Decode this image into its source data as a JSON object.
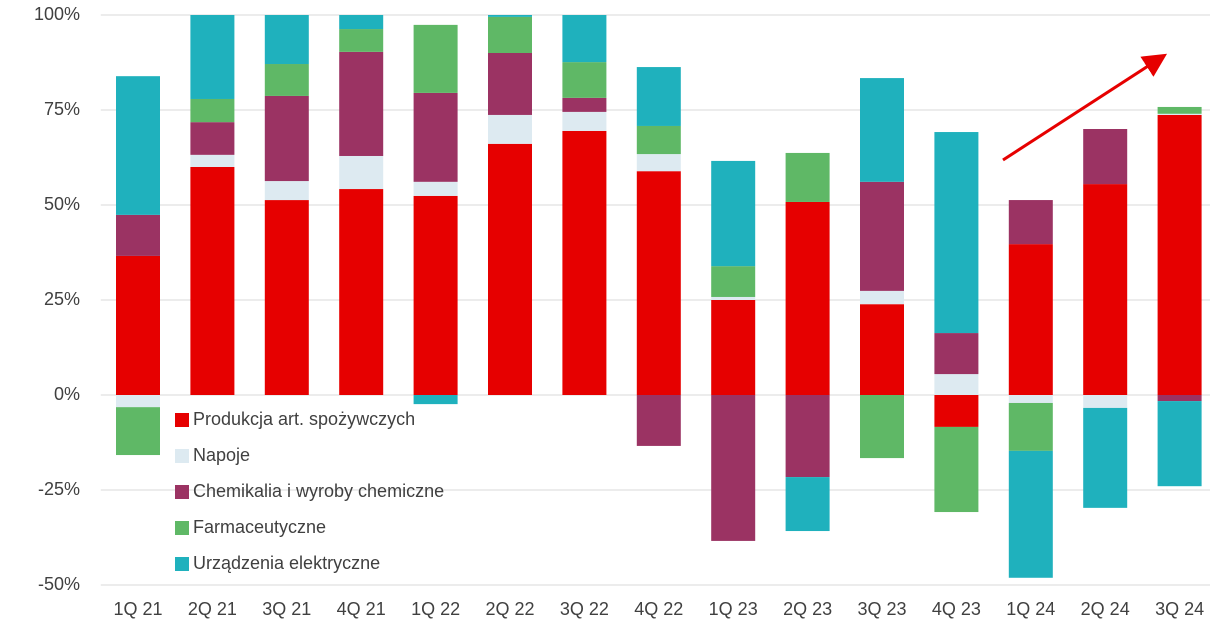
{
  "chart_data": {
    "type": "bar",
    "stacked": true,
    "categories": [
      "1Q 21",
      "2Q 21",
      "3Q 21",
      "4Q 21",
      "1Q 22",
      "2Q 22",
      "3Q 22",
      "4Q 22",
      "1Q 23",
      "2Q 23",
      "3Q 23",
      "4Q 23",
      "1Q 24",
      "2Q 24",
      "3Q 24"
    ],
    "series": [
      {
        "name": "Produkcja art. spożywczych",
        "color": "#e60000",
        "values": [
          36.6,
          60.0,
          51.3,
          54.2,
          52.4,
          66.1,
          69.5,
          58.9,
          25.0,
          50.8,
          23.9,
          -8.4,
          39.7,
          55.5,
          73.7
        ]
      },
      {
        "name": "Napoje",
        "color": "#ddeaf1",
        "values": [
          -3.2,
          3.2,
          5.0,
          8.7,
          3.7,
          7.6,
          5.0,
          4.5,
          0.8,
          0,
          3.5,
          5.5,
          -2.1,
          -3.4,
          0.3
        ]
      },
      {
        "name": "Chemikalia i wyroby chemiczne",
        "color": "#9b3363",
        "values": [
          10.8,
          8.6,
          22.4,
          27.4,
          23.4,
          16.3,
          3.7,
          -13.4,
          -38.4,
          -21.6,
          28.7,
          10.8,
          11.6,
          14.5,
          -1.6
        ]
      },
      {
        "name": "Farmaceutyczne",
        "color": "#5fb866",
        "values": [
          -12.6,
          6.1,
          8.4,
          6.0,
          17.9,
          9.5,
          9.4,
          7.4,
          8.1,
          12.9,
          -16.6,
          -22.4,
          -12.6,
          0,
          1.8
        ]
      },
      {
        "name": "Urządzenia elektryczne",
        "color": "#1fb1bd",
        "values": [
          36.5,
          22.1,
          12.9,
          3.7,
          -2.4,
          0.5,
          12.4,
          15.5,
          27.7,
          -14.2,
          27.3,
          52.9,
          -33.4,
          -26.3,
          -22.4
        ]
      }
    ],
    "ylim": [
      -50,
      100
    ],
    "yticks": [
      {
        "value": -50,
        "label": "-50%"
      },
      {
        "value": -25,
        "label": "-25%"
      },
      {
        "value": 0,
        "label": "0%"
      },
      {
        "value": 25,
        "label": "25%"
      },
      {
        "value": 50,
        "label": "50%"
      },
      {
        "value": 75,
        "label": "75%"
      },
      {
        "value": 100,
        "label": "100%"
      }
    ],
    "grid": true,
    "legend": "lower left"
  }
}
